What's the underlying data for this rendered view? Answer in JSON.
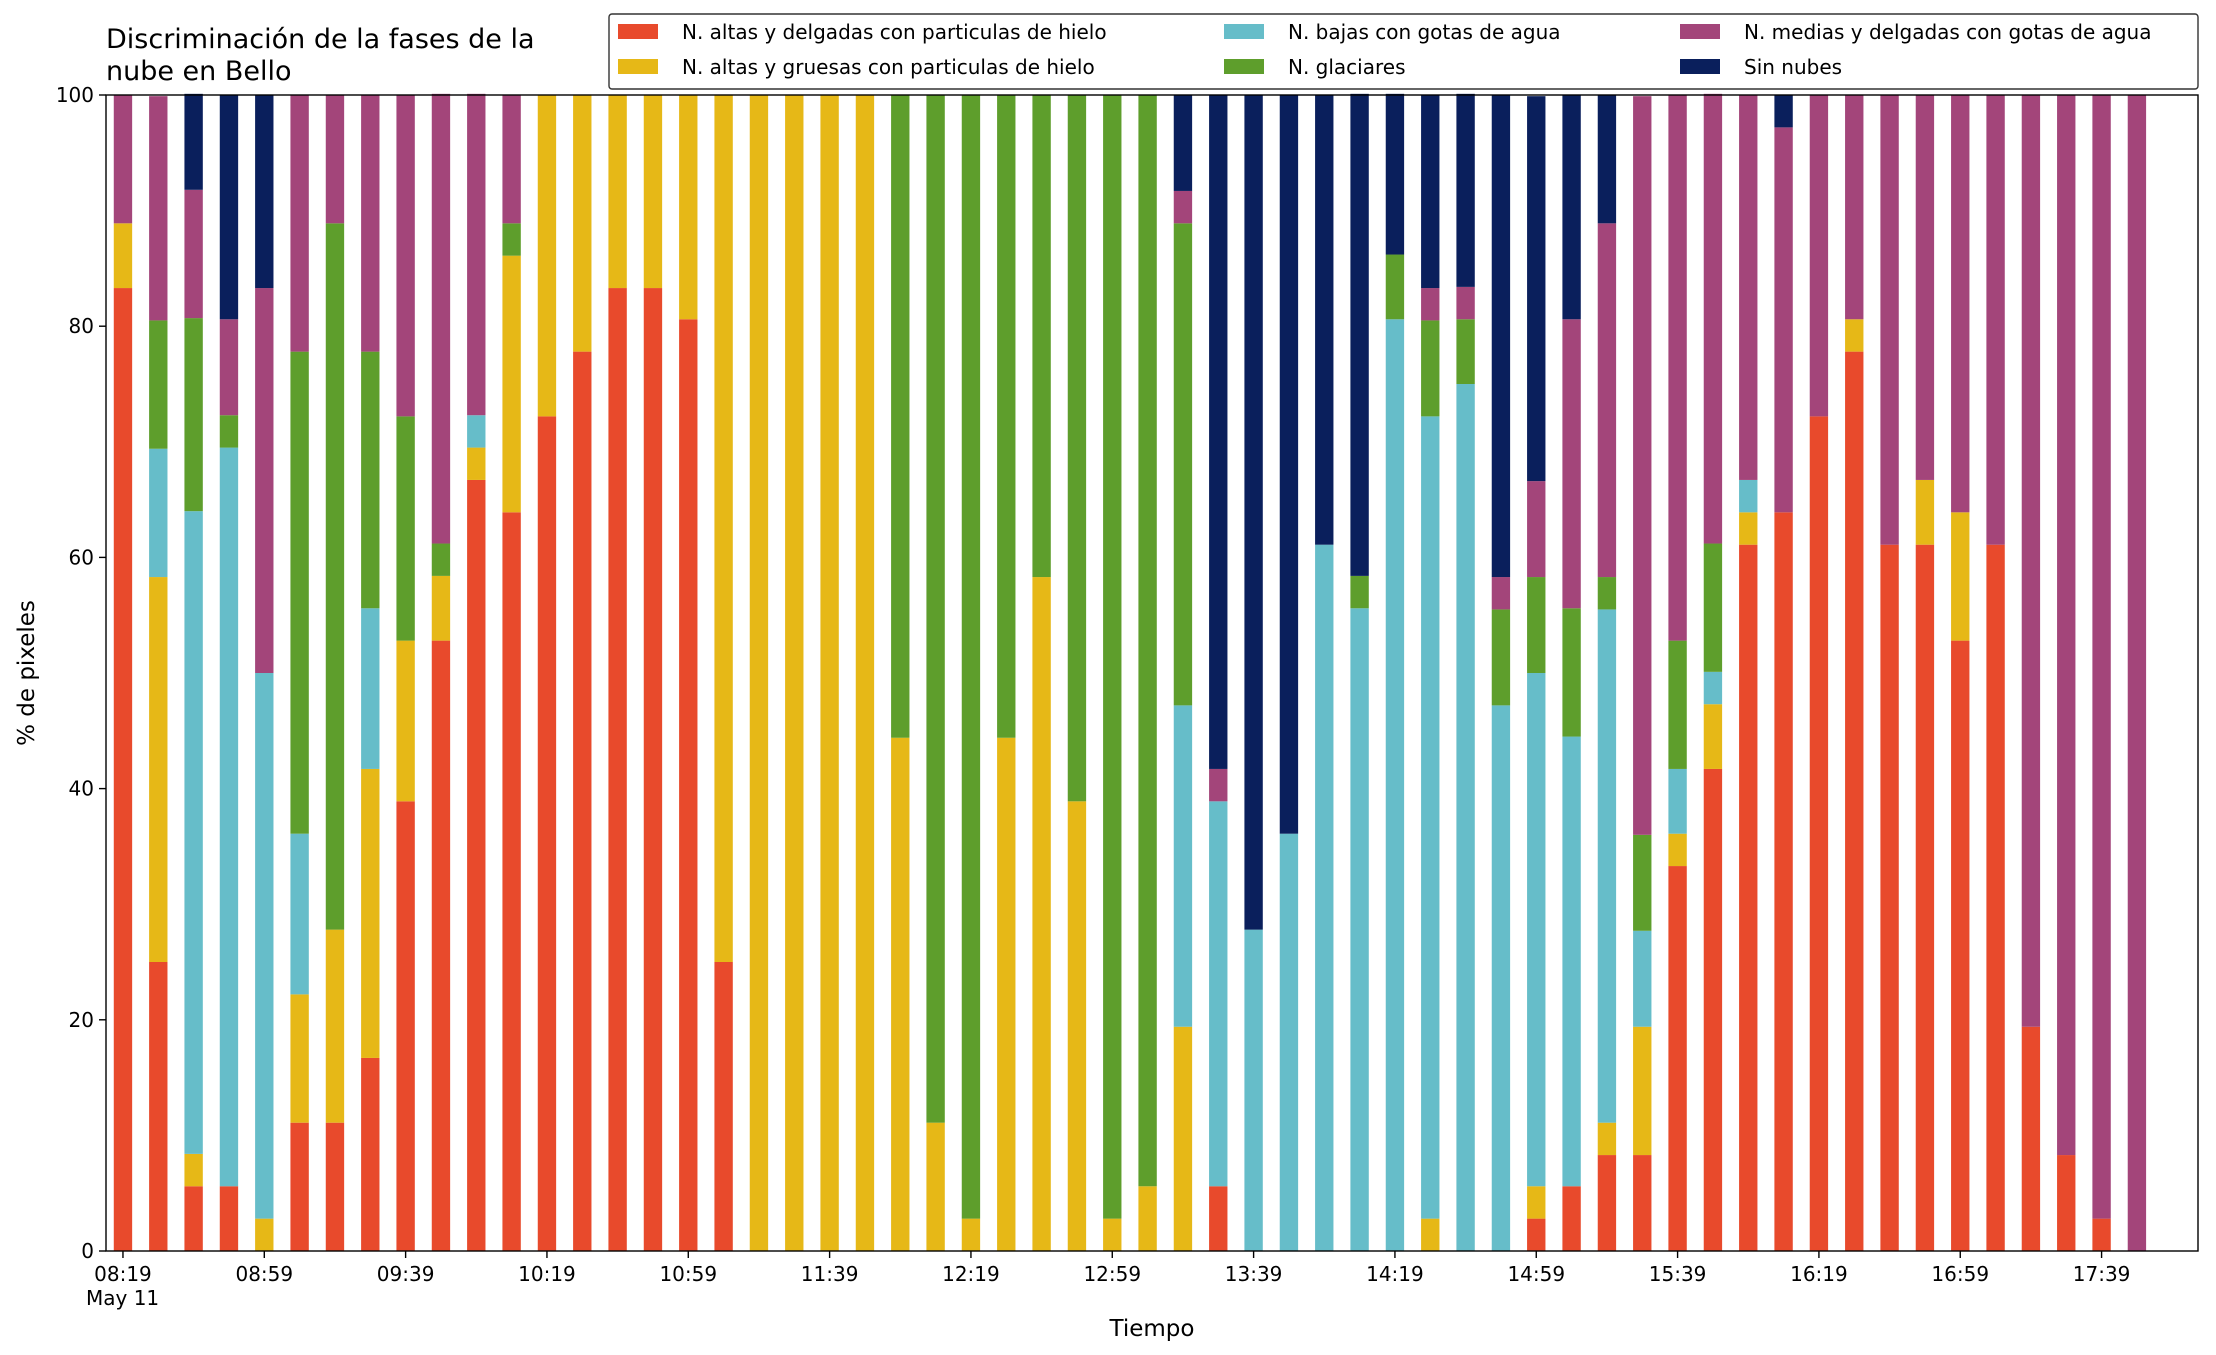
{
  "chart_data": {
    "type": "stacked_bar",
    "title": "Discriminación de la fases de la\nnube en Bello",
    "xlabel": "Tiempo",
    "ylabel": "% de pixeles",
    "date_label": "May 11",
    "categories": [
      "08:19",
      null,
      null,
      null,
      "08:59",
      null,
      null,
      null,
      "09:39",
      null,
      null,
      null,
      "10:19",
      null,
      null,
      null,
      "10:59",
      null,
      null,
      null,
      "11:39",
      null,
      null,
      null,
      "12:19",
      null,
      null,
      null,
      "12:59",
      null,
      null,
      null,
      "13:39",
      null,
      null,
      null,
      "14:19",
      null,
      null,
      null,
      "14:59",
      null,
      null,
      null,
      "15:39",
      null,
      null,
      null,
      "16:19",
      null,
      null,
      null,
      "16:59",
      null,
      null,
      null,
      "17:39",
      null
    ],
    "ylim": [
      0,
      100
    ],
    "yticks": [
      0,
      20,
      40,
      60,
      80,
      100
    ],
    "grid": false,
    "legend": "upper right",
    "series": [
      {
        "name": "N. altas y delgadas con particulas de hielo",
        "color": "#e84a2c",
        "values": [
          83.3,
          25,
          5.6,
          5.6,
          0,
          11.1,
          11.1,
          16.7,
          38.9,
          52.8,
          66.7,
          63.9,
          72.2,
          77.8,
          83.3,
          83.3,
          80.6,
          25,
          0,
          0,
          0,
          0,
          0,
          0,
          0,
          0,
          0,
          0,
          0,
          0,
          0,
          5.6,
          0,
          0,
          0,
          0,
          0,
          0,
          0,
          0,
          2.8,
          5.6,
          8.3,
          8.3,
          33.3,
          41.7,
          61.1,
          63.9,
          72.2,
          77.8,
          61.1,
          61.1,
          52.8,
          61.1,
          19.4,
          8.3,
          2.8,
          0
        ]
      },
      {
        "name": "N. altas y gruesas con particulas de hielo",
        "color": "#e6b817",
        "values": [
          5.6,
          33.3,
          2.8,
          0,
          2.8,
          11.1,
          16.7,
          25,
          13.9,
          5.6,
          2.8,
          22.2,
          27.8,
          22.2,
          16.7,
          16.7,
          19.4,
          75,
          100,
          100,
          100,
          100,
          44.4,
          11.1,
          2.8,
          44.4,
          58.3,
          38.9,
          2.8,
          5.6,
          19.4,
          0,
          0,
          0,
          0,
          0,
          0,
          2.8,
          0,
          0,
          2.8,
          0,
          2.8,
          11.1,
          2.8,
          5.6,
          2.8,
          0,
          0,
          2.8,
          0,
          5.6,
          11.1,
          0,
          0,
          0,
          0,
          0
        ]
      },
      {
        "name": "N. bajas con gotas de agua",
        "color": "#66bdc9",
        "values": [
          0,
          11.1,
          55.6,
          63.9,
          47.2,
          13.9,
          0,
          13.9,
          0,
          0,
          2.8,
          0,
          0,
          0,
          0,
          0,
          0,
          0,
          0,
          0,
          0,
          0,
          0,
          0,
          0,
          0,
          0,
          0,
          0,
          0,
          27.8,
          33.3,
          27.8,
          36.1,
          61.1,
          55.6,
          80.6,
          69.4,
          75,
          47.2,
          44.4,
          38.9,
          44.4,
          8.3,
          5.6,
          2.8,
          2.8,
          0,
          0,
          0,
          0,
          0,
          0,
          0,
          0,
          0,
          0,
          0
        ]
      },
      {
        "name": "N. glaciares",
        "color": "#5e9e2c",
        "values": [
          0,
          11.1,
          16.7,
          2.8,
          0,
          41.7,
          61.1,
          22.2,
          19.4,
          2.8,
          0,
          2.8,
          0,
          0,
          0,
          0,
          0,
          0,
          0,
          0,
          0,
          0,
          55.6,
          88.9,
          97.2,
          55.6,
          41.7,
          61.1,
          97.2,
          94.4,
          41.7,
          0,
          0,
          0,
          0,
          2.8,
          5.6,
          8.3,
          5.6,
          8.3,
          8.3,
          11.1,
          2.8,
          8.3,
          11.1,
          11.1,
          0,
          0,
          0,
          0,
          0,
          0,
          0,
          0,
          0,
          0,
          0,
          0
        ]
      },
      {
        "name": "N. medias y delgadas con gotas de agua",
        "color": "#a3457a",
        "values": [
          11.1,
          19.4,
          11.1,
          8.3,
          33.3,
          22.2,
          11.1,
          22.2,
          27.8,
          38.9,
          27.8,
          11.1,
          0,
          0,
          0,
          0,
          0,
          0,
          0,
          0,
          0,
          0,
          0,
          0,
          0,
          0,
          0,
          0,
          0,
          0,
          2.8,
          2.8,
          0,
          0,
          0,
          0,
          0,
          2.8,
          2.8,
          2.8,
          8.3,
          25,
          30.6,
          63.9,
          47.2,
          38.9,
          33.3,
          33.3,
          27.8,
          19.4,
          38.9,
          33.3,
          36.1,
          38.9,
          80.6,
          91.7,
          97.2,
          100
        ]
      },
      {
        "name": "Sin nubes",
        "color": "#0a1f5c",
        "values": [
          0,
          0,
          8.3,
          19.4,
          16.7,
          0,
          0,
          0,
          0,
          0,
          0,
          0,
          0,
          0,
          0,
          0,
          0,
          0,
          0,
          0,
          0,
          0,
          0,
          0,
          0,
          0,
          0,
          0,
          0,
          0,
          8.3,
          58.3,
          72.2,
          63.9,
          38.9,
          41.7,
          13.9,
          16.7,
          16.7,
          41.7,
          33.3,
          19.4,
          11.1,
          0,
          0,
          0,
          0,
          2.8,
          0,
          0,
          0,
          0,
          0,
          0,
          0,
          0,
          0,
          0
        ]
      }
    ]
  }
}
